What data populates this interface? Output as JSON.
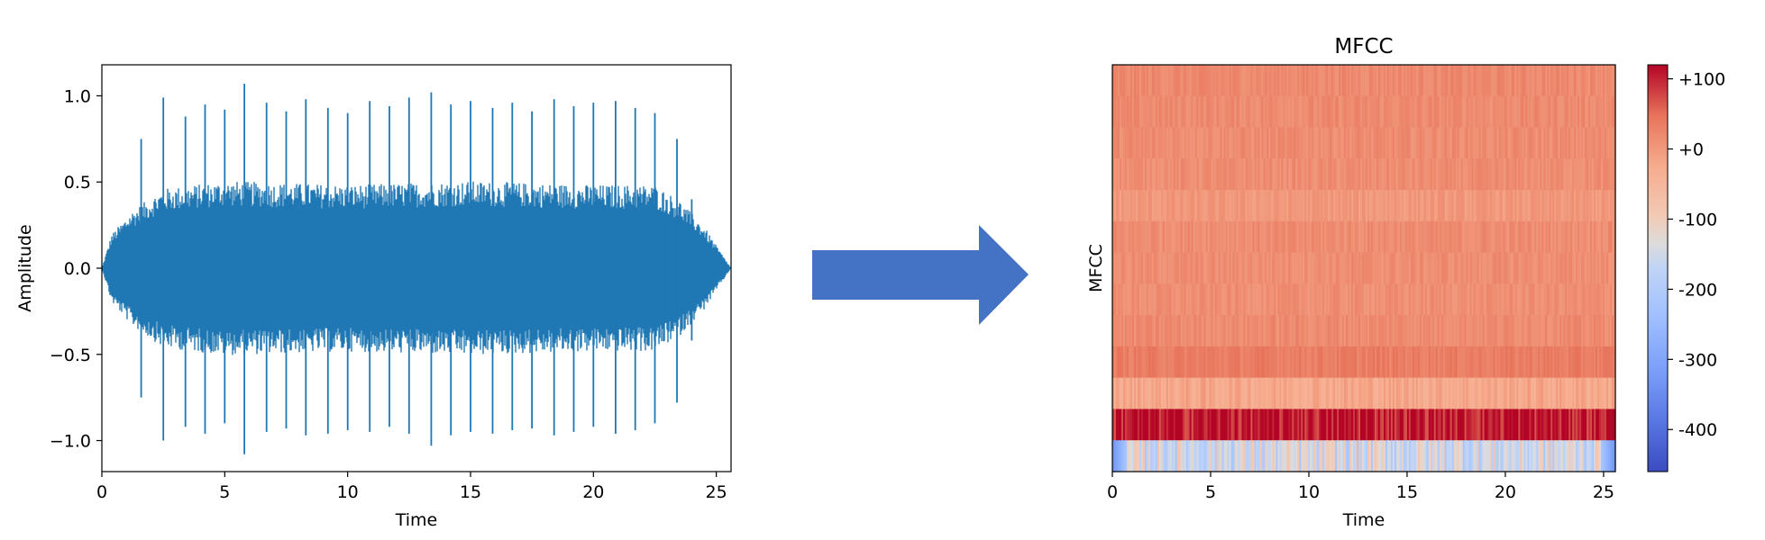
{
  "colors": {
    "waveform": "#1f77b4",
    "arrow": "#4472c4",
    "axis": "#000000",
    "colormap": "coolwarm"
  },
  "chart_data": [
    {
      "type": "line",
      "title": "",
      "xlabel": "Time",
      "ylabel": "Amplitude",
      "xlim": [
        0,
        25.6
      ],
      "ylim": [
        -1.18,
        1.18
      ],
      "x_ticks": [
        0,
        5,
        10,
        15,
        20,
        25
      ],
      "x_tick_labels": [
        "0",
        "5",
        "10",
        "15",
        "20",
        "25"
      ],
      "y_ticks": [
        1.0,
        0.5,
        0.0,
        -0.5,
        -1.0
      ],
      "y_tick_labels": [
        "1.0",
        "0.5",
        "0.0",
        "−0.5",
        "−1.0"
      ],
      "grid": false,
      "series": [
        {
          "x": [
            0,
            0.4,
            1.2,
            2.5,
            5.0,
            7.5,
            10.0,
            12.5,
            15.0,
            17.5,
            20.0,
            22.5,
            23.5,
            24.5,
            25.6
          ],
          "envelope_max": [
            0.0,
            0.18,
            0.3,
            0.42,
            0.46,
            0.45,
            0.44,
            0.45,
            0.46,
            0.45,
            0.44,
            0.44,
            0.36,
            0.22,
            0.0
          ],
          "peaks": [
            {
              "x": 1.6,
              "max": 0.75,
              "min": -0.75
            },
            {
              "x": 2.5,
              "max": 0.99,
              "min": -1.0
            },
            {
              "x": 3.4,
              "max": 0.88,
              "min": -0.92
            },
            {
              "x": 4.2,
              "max": 0.95,
              "min": -0.96
            },
            {
              "x": 5.0,
              "max": 0.92,
              "min": -0.9
            },
            {
              "x": 5.8,
              "max": 1.07,
              "min": -1.08
            },
            {
              "x": 6.7,
              "max": 0.96,
              "min": -0.95
            },
            {
              "x": 7.5,
              "max": 0.91,
              "min": -0.93
            },
            {
              "x": 8.3,
              "max": 0.98,
              "min": -0.97
            },
            {
              "x": 9.2,
              "max": 0.93,
              "min": -0.96
            },
            {
              "x": 10.0,
              "max": 0.9,
              "min": -0.94
            },
            {
              "x": 10.9,
              "max": 0.97,
              "min": -0.95
            },
            {
              "x": 11.7,
              "max": 0.94,
              "min": -0.92
            },
            {
              "x": 12.5,
              "max": 0.99,
              "min": -0.96
            },
            {
              "x": 13.4,
              "max": 1.02,
              "min": -1.03
            },
            {
              "x": 14.2,
              "max": 0.95,
              "min": -0.97
            },
            {
              "x": 15.0,
              "max": 0.97,
              "min": -0.95
            },
            {
              "x": 15.9,
              "max": 0.93,
              "min": -0.96
            },
            {
              "x": 16.7,
              "max": 0.96,
              "min": -0.94
            },
            {
              "x": 17.5,
              "max": 0.91,
              "min": -0.93
            },
            {
              "x": 18.4,
              "max": 0.98,
              "min": -0.97
            },
            {
              "x": 19.2,
              "max": 0.94,
              "min": -0.95
            },
            {
              "x": 20.0,
              "max": 0.96,
              "min": -0.92
            },
            {
              "x": 20.9,
              "max": 0.97,
              "min": -0.96
            },
            {
              "x": 21.7,
              "max": 0.93,
              "min": -0.94
            },
            {
              "x": 22.5,
              "max": 0.9,
              "min": -0.9
            },
            {
              "x": 23.4,
              "max": 0.75,
              "min": -0.78
            },
            {
              "x": 24.0,
              "max": 0.4,
              "min": -0.42
            }
          ]
        }
      ]
    },
    {
      "type": "heatmap",
      "title": "MFCC",
      "xlabel": "Time",
      "ylabel": "MFCC",
      "xlim": [
        0,
        25.6
      ],
      "x_ticks": [
        0,
        5,
        10,
        15,
        20,
        25
      ],
      "x_tick_labels": [
        "0",
        "5",
        "10",
        "15",
        "20",
        "25"
      ],
      "rows": 13,
      "row_values_top_to_bottom": [
        20,
        18,
        16,
        14,
        0,
        16,
        14,
        12,
        18,
        35,
        -20,
        110,
        -150
      ],
      "zlim": [
        -460,
        120
      ],
      "colorbar": {
        "ticks": [
          100,
          0,
          -100,
          -200,
          -300,
          -400
        ],
        "tick_labels": [
          "+100",
          "+0",
          "-100",
          "-200",
          "-300",
          "-400"
        ]
      }
    }
  ]
}
